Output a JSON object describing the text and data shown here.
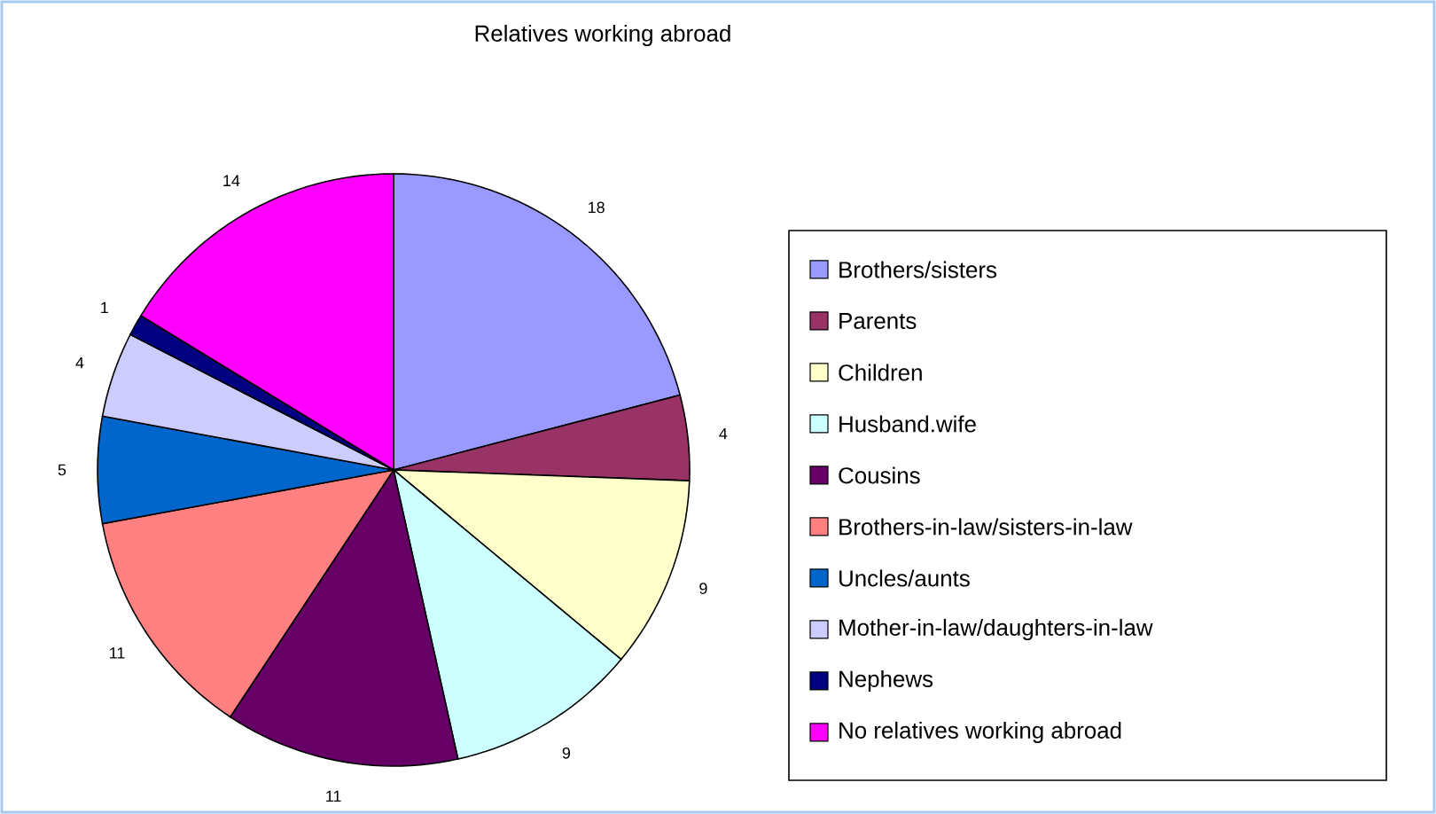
{
  "chart_data": {
    "type": "pie",
    "title": "Relatives working abroad",
    "categories": [
      "Brothers/sisters",
      "Parents",
      "Children",
      "Husband.wife",
      "Cousins",
      "Brothers-in-law/sisters-in-law",
      "Uncles/aunts",
      "Mother-in-law/daughters-in-law",
      "Nephews",
      "No relatives working abroad"
    ],
    "values": [
      18,
      4,
      9,
      9,
      11,
      11,
      5,
      4,
      1,
      14
    ],
    "colors": [
      "#9999ff",
      "#993366",
      "#ffffcc",
      "#ccffff",
      "#660066",
      "#ff8080",
      "#0066cc",
      "#ccccff",
      "#000080",
      "#ff00ff"
    ],
    "data_labels": true,
    "legend": "right"
  }
}
